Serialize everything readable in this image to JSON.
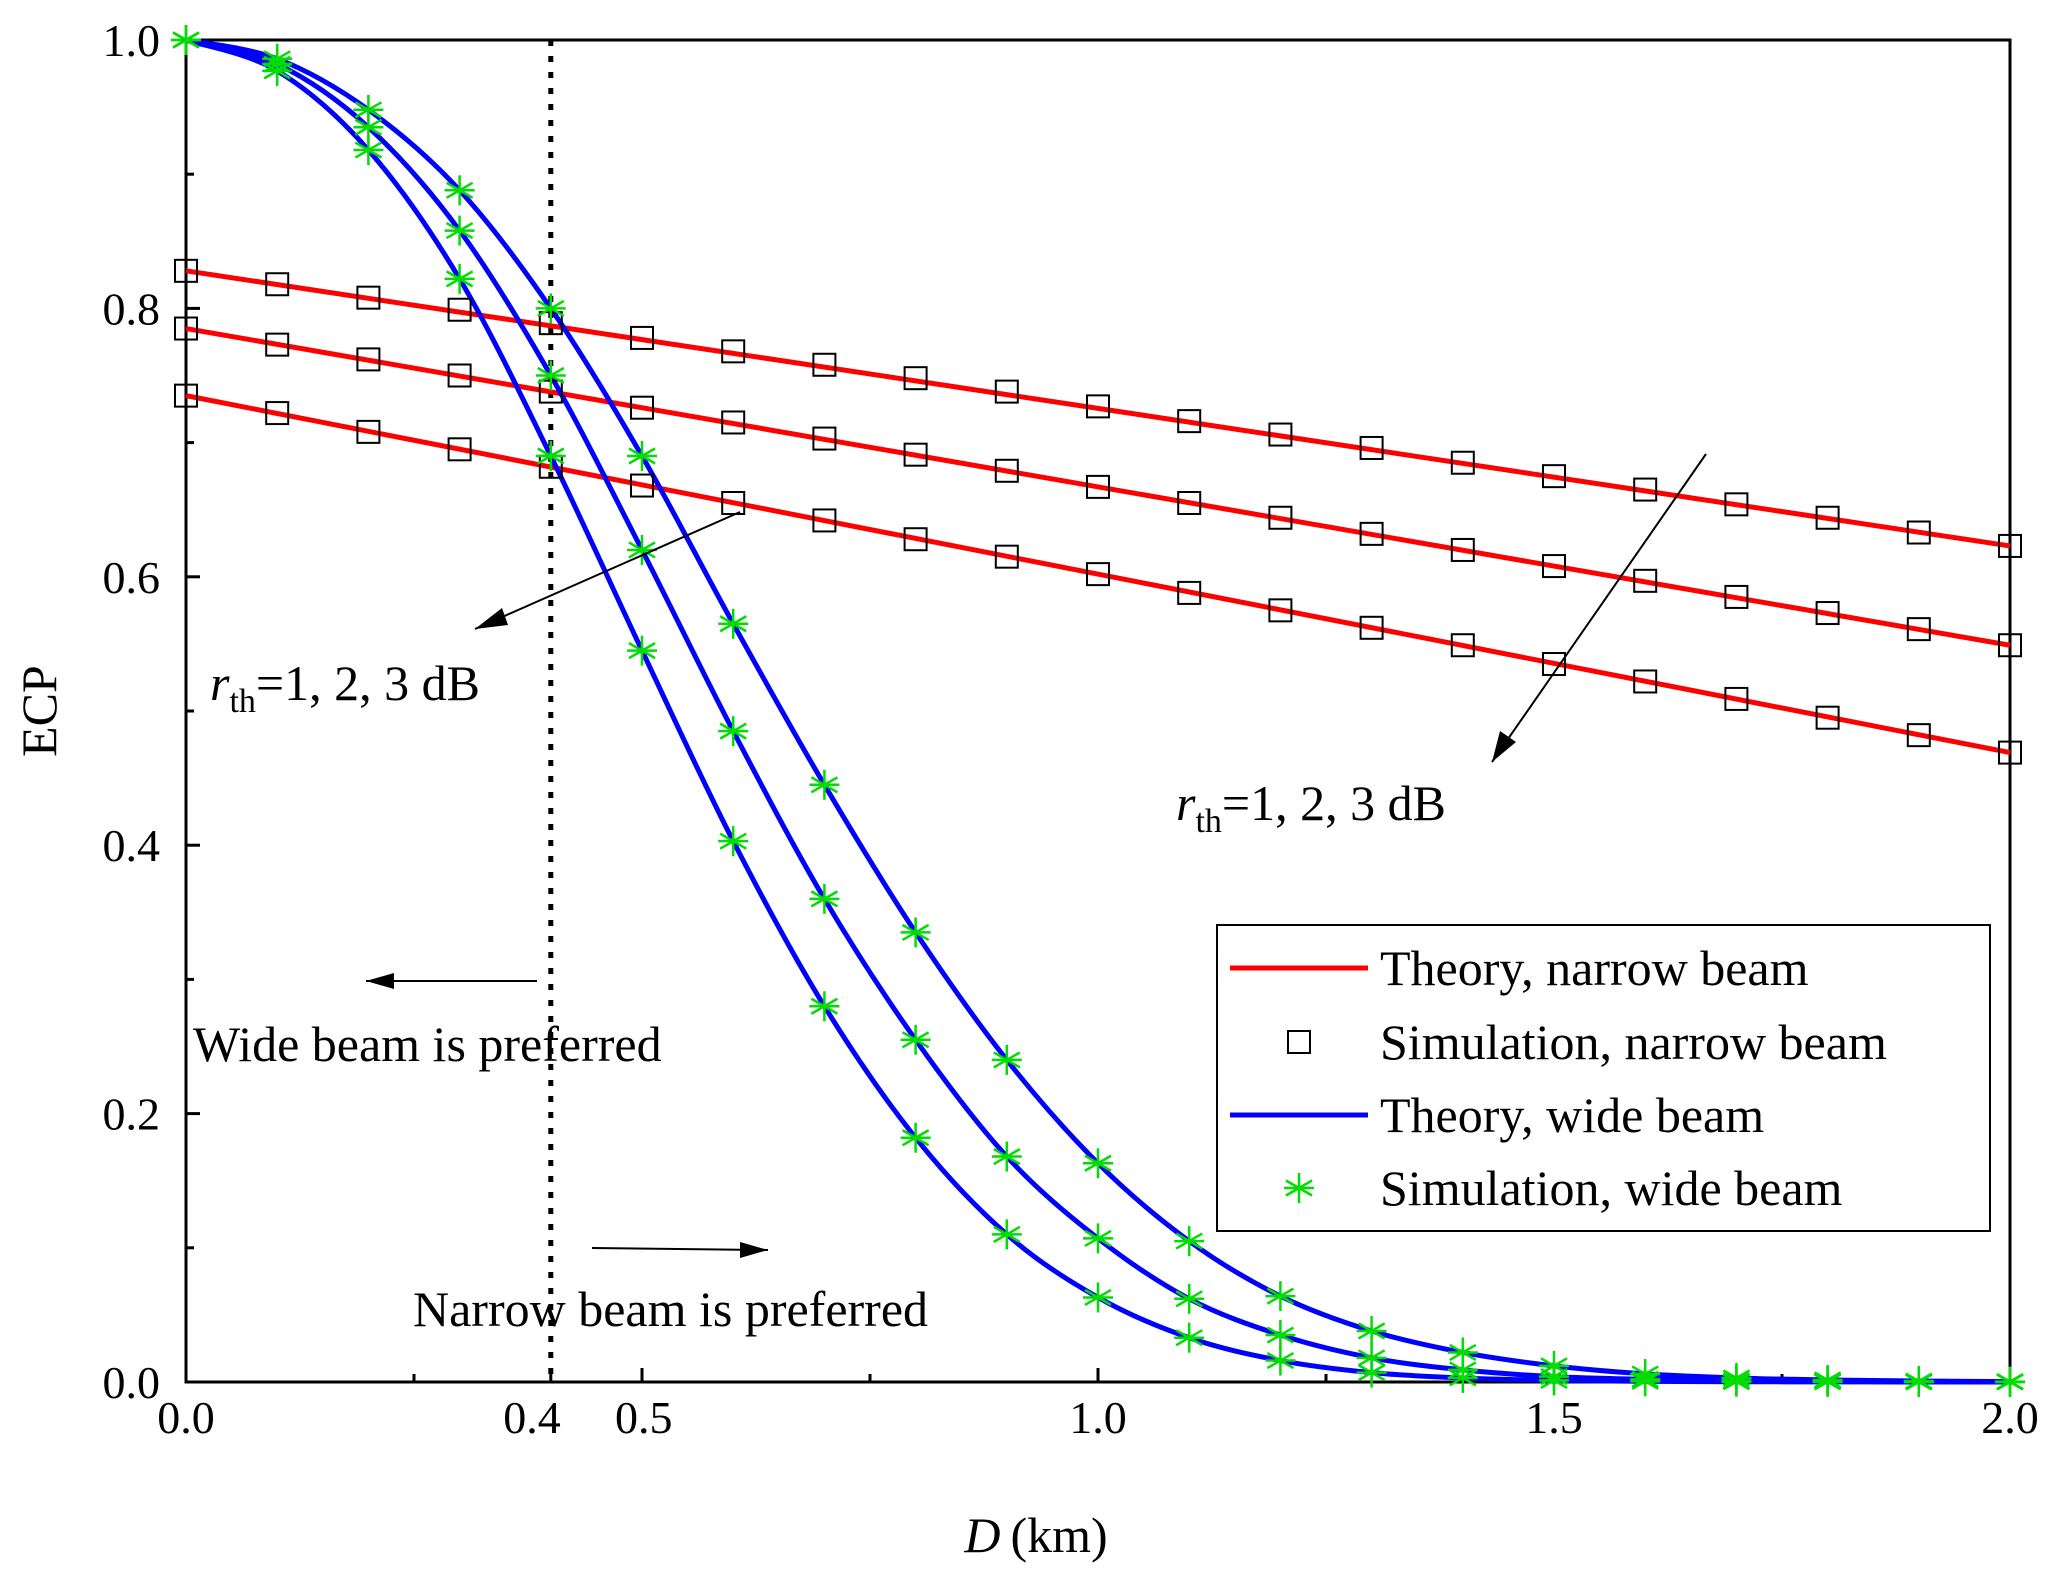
{
  "chart_data": {
    "type": "line",
    "title": "",
    "xlabel_var": "D",
    "xlabel_unit": "(km)",
    "ylabel": "ECP",
    "xlim": [
      0.0,
      2.0
    ],
    "ylim": [
      0.0,
      1.0
    ],
    "x_ticks": [
      {
        "value": 0.0,
        "label": "0.0"
      },
      {
        "value": 0.4,
        "label": "0.4"
      },
      {
        "value": 0.5,
        "label": "0.5"
      },
      {
        "value": 1.0,
        "label": "1.0"
      },
      {
        "value": 1.5,
        "label": "1.5"
      },
      {
        "value": 2.0,
        "label": "2.0"
      }
    ],
    "y_ticks": [
      {
        "value": 0.0,
        "label": "0.0"
      },
      {
        "value": 0.2,
        "label": "0.2"
      },
      {
        "value": 0.4,
        "label": "0.4"
      },
      {
        "value": 0.6,
        "label": "0.6"
      },
      {
        "value": 0.8,
        "label": "0.8"
      },
      {
        "value": 1.0,
        "label": "1.0"
      }
    ],
    "x_minor_ticks": [
      0.25,
      0.75,
      1.25,
      1.75
    ],
    "y_minor_ticks": [
      0.1,
      0.3,
      0.5,
      0.7,
      0.9
    ],
    "grid": false,
    "legend_position": "bottom-right",
    "threshold_x": 0.4,
    "sim_x": [
      0.0,
      0.1,
      0.2,
      0.3,
      0.4,
      0.5,
      0.6,
      0.7,
      0.8,
      0.9,
      1.0,
      1.1,
      1.2,
      1.3,
      1.4,
      1.5,
      1.6,
      1.7,
      1.8,
      1.9,
      2.0
    ],
    "series": [
      {
        "name": "Theory, narrow beam",
        "kind": "theory",
        "beam": "narrow",
        "color": "#ff0000",
        "rth_db": 1,
        "x": [
          0.0,
          2.0
        ],
        "y": [
          0.828,
          0.623
        ]
      },
      {
        "name": "Theory, narrow beam",
        "kind": "theory",
        "beam": "narrow",
        "color": "#ff0000",
        "rth_db": 2,
        "x": [
          0.0,
          2.0
        ],
        "y": [
          0.785,
          0.549
        ]
      },
      {
        "name": "Theory, narrow beam",
        "kind": "theory",
        "beam": "narrow",
        "color": "#ff0000",
        "rth_db": 3,
        "x": [
          0.0,
          2.0
        ],
        "y": [
          0.735,
          0.469
        ]
      },
      {
        "name": "Simulation, narrow beam",
        "kind": "simulation",
        "beam": "narrow",
        "marker": "square",
        "color": "#000000",
        "rth_db": 1,
        "y": [
          0.828,
          0.818,
          0.808,
          0.799,
          0.789,
          0.778,
          0.768,
          0.758,
          0.748,
          0.738,
          0.727,
          0.716,
          0.706,
          0.696,
          0.685,
          0.675,
          0.665,
          0.654,
          0.644,
          0.633,
          0.623
        ]
      },
      {
        "name": "Simulation, narrow beam",
        "kind": "simulation",
        "beam": "narrow",
        "marker": "square",
        "color": "#000000",
        "rth_db": 2,
        "y": [
          0.785,
          0.773,
          0.762,
          0.75,
          0.738,
          0.726,
          0.715,
          0.703,
          0.691,
          0.679,
          0.667,
          0.655,
          0.644,
          0.632,
          0.62,
          0.608,
          0.597,
          0.585,
          0.573,
          0.561,
          0.549
        ]
      },
      {
        "name": "Simulation, narrow beam",
        "kind": "simulation",
        "beam": "narrow",
        "marker": "square",
        "color": "#000000",
        "rth_db": 3,
        "y": [
          0.735,
          0.722,
          0.708,
          0.695,
          0.682,
          0.668,
          0.655,
          0.642,
          0.628,
          0.615,
          0.602,
          0.588,
          0.575,
          0.562,
          0.549,
          0.535,
          0.522,
          0.509,
          0.495,
          0.482,
          0.469
        ]
      },
      {
        "name": "Theory, wide beam",
        "kind": "theory",
        "beam": "wide",
        "color": "#0000ff",
        "rth_db": 1,
        "x": [
          0.0,
          0.1,
          0.2,
          0.3,
          0.4,
          0.5,
          0.6,
          0.7,
          0.8,
          0.9,
          1.0,
          1.1,
          1.2,
          1.3,
          1.4,
          1.5,
          1.6,
          1.7,
          1.8,
          1.9,
          2.0
        ],
        "y": [
          1.0,
          0.986,
          0.948,
          0.888,
          0.8,
          0.69,
          0.565,
          0.445,
          0.335,
          0.24,
          0.163,
          0.105,
          0.064,
          0.038,
          0.022,
          0.012,
          0.006,
          0.003,
          0.0015,
          0.0007,
          0.0003
        ]
      },
      {
        "name": "Theory, wide beam",
        "kind": "theory",
        "beam": "wide",
        "color": "#0000ff",
        "rth_db": 2,
        "x": [
          0.0,
          0.1,
          0.2,
          0.3,
          0.4,
          0.5,
          0.6,
          0.7,
          0.8,
          0.9,
          1.0,
          1.1,
          1.2,
          1.3,
          1.4,
          1.5,
          1.6,
          1.7,
          1.8,
          1.9,
          2.0
        ],
        "y": [
          1.0,
          0.982,
          0.935,
          0.858,
          0.75,
          0.62,
          0.485,
          0.36,
          0.255,
          0.168,
          0.107,
          0.062,
          0.035,
          0.018,
          0.009,
          0.004,
          0.002,
          0.001,
          0.0005,
          0.0002,
          0.0001
        ]
      },
      {
        "name": "Theory, wide beam",
        "kind": "theory",
        "beam": "wide",
        "color": "#0000ff",
        "rth_db": 3,
        "x": [
          0.0,
          0.1,
          0.2,
          0.3,
          0.4,
          0.5,
          0.6,
          0.7,
          0.8,
          0.9,
          1.0,
          1.1,
          1.2,
          1.3,
          1.4,
          1.5,
          1.6,
          1.7,
          1.8,
          1.9,
          2.0
        ],
        "y": [
          1.0,
          0.977,
          0.918,
          0.822,
          0.69,
          0.545,
          0.403,
          0.28,
          0.182,
          0.11,
          0.063,
          0.033,
          0.016,
          0.007,
          0.003,
          0.0012,
          0.0005,
          0.0002,
          0.0001,
          0.0,
          0.0
        ]
      },
      {
        "name": "Simulation, wide beam",
        "kind": "simulation",
        "beam": "wide",
        "marker": "asterisk",
        "color": "#00dd00",
        "rth_db": 1,
        "y": [
          1.0,
          0.986,
          0.948,
          0.888,
          0.8,
          0.69,
          0.565,
          0.445,
          0.335,
          0.24,
          0.163,
          0.105,
          0.064,
          0.038,
          0.022,
          0.012,
          0.006,
          0.003,
          0.0015,
          0.0007,
          0.0003
        ]
      },
      {
        "name": "Simulation, wide beam",
        "kind": "simulation",
        "beam": "wide",
        "marker": "asterisk",
        "color": "#00dd00",
        "rth_db": 2,
        "y": [
          1.0,
          0.982,
          0.935,
          0.858,
          0.75,
          0.62,
          0.485,
          0.36,
          0.255,
          0.168,
          0.107,
          0.062,
          0.035,
          0.018,
          0.009,
          0.004,
          0.002,
          0.001,
          0.0005,
          0.0002,
          0.0001
        ]
      },
      {
        "name": "Simulation, wide beam",
        "kind": "simulation",
        "beam": "wide",
        "marker": "asterisk",
        "color": "#00dd00",
        "rth_db": 3,
        "y": [
          1.0,
          0.977,
          0.918,
          0.822,
          0.69,
          0.545,
          0.403,
          0.28,
          0.182,
          0.11,
          0.063,
          0.033,
          0.016,
          0.007,
          0.003,
          0.0012,
          0.0005,
          0.0002,
          0.0001,
          0.0,
          0.0
        ]
      }
    ],
    "legend": [
      {
        "label": "Theory, narrow beam",
        "kind": "line",
        "color": "#ff0000"
      },
      {
        "label": "Simulation, narrow beam",
        "kind": "square",
        "color": "#000000"
      },
      {
        "label": "Theory, wide beam",
        "kind": "line",
        "color": "#0000ff"
      },
      {
        "label": "Simulation, wide beam",
        "kind": "asterisk",
        "color": "#00dd00"
      }
    ],
    "annotations": {
      "rth_var": "r",
      "rth_sub": "th",
      "rth_values": "=1, 2, 3 dB",
      "wide_preferred": "Wide beam is preferred",
      "narrow_preferred": "Narrow beam is preferred"
    }
  }
}
